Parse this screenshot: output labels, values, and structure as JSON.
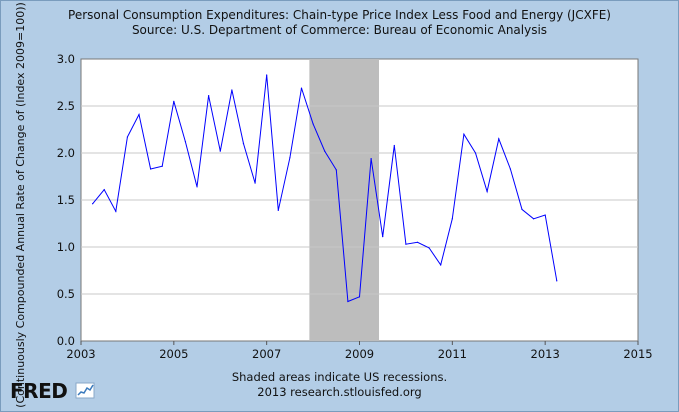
{
  "chart_data": {
    "type": "line",
    "title": "Personal Consumption Expenditures: Chain-type Price Index Less Food and Energy (JCXFE)",
    "subtitle": "Source: U.S. Department of Commerce: Bureau of Economic Analysis",
    "ylabel": "(Continuously Compounded Annual Rate of Change of (Index 2009=100))",
    "xlabel": "",
    "xlim": [
      2003,
      2015
    ],
    "ylim": [
      0.0,
      3.0
    ],
    "x_ticks": [
      "2003",
      "2005",
      "2007",
      "2009",
      "2011",
      "2013",
      "2015"
    ],
    "y_ticks": [
      "0.0",
      "0.5",
      "1.0",
      "1.5",
      "2.0",
      "2.5",
      "3.0"
    ],
    "grid": "horizontal",
    "line_color": "#0000ff",
    "recession_shading": {
      "start": 2007.92,
      "end": 2009.42,
      "color": "#bdbdbd"
    },
    "series": [
      {
        "x": [
          2003.25,
          2003.5,
          2003.75,
          2004.0,
          2004.25,
          2004.5,
          2004.75,
          2005.0,
          2005.25,
          2005.5,
          2005.75,
          2006.0,
          2006.25,
          2006.5,
          2006.75,
          2007.0,
          2007.25,
          2007.5,
          2007.75,
          2008.0,
          2008.25,
          2008.5,
          2008.75,
          2009.0,
          2009.25,
          2009.5,
          2009.75,
          2010.0,
          2010.25,
          2010.5,
          2010.75,
          2011.0,
          2011.25,
          2011.5,
          2011.75,
          2012.0,
          2012.25,
          2012.5,
          2012.75,
          2013.0,
          2013.25
        ],
        "values": [
          1.46,
          1.61,
          1.38,
          2.17,
          2.41,
          1.83,
          1.86,
          2.55,
          2.12,
          1.64,
          2.61,
          2.02,
          2.67,
          2.1,
          1.68,
          2.83,
          1.39,
          1.95,
          2.69,
          2.31,
          2.02,
          1.82,
          0.42,
          0.47,
          1.94,
          1.11,
          2.08,
          1.03,
          1.05,
          0.99,
          0.81,
          1.3,
          2.2,
          2.0,
          1.59,
          2.15,
          1.83,
          1.4,
          1.3,
          1.34,
          0.64
        ]
      }
    ]
  },
  "footer": {
    "line1": "Shaded areas indicate US recessions.",
    "line2": "2013 research.stlouisfed.org",
    "logo_text": "FRED"
  }
}
